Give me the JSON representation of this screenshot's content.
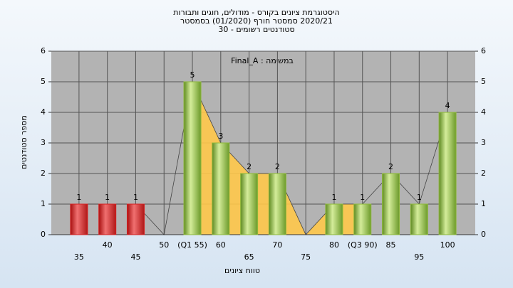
{
  "chart_data": {
    "type": "bar",
    "title": "היסטוגרמת ציונים בקורס - מודולים, חוגים ותבורות",
    "subtitle": "2020/21 סמסטר חורף  (01/2020)  בסמסטר",
    "subtitle2": "סטודנטים רשומים - 30",
    "annotation": "במשימה : Final_A",
    "xlabel": "טווח ציונים",
    "ylabel": "מספר סטודנטים",
    "categories": [
      "35",
      "40",
      "45",
      "50",
      "(Q1 55)",
      "60",
      "65",
      "70",
      "75",
      "80",
      "(Q3 90)",
      "85",
      "95",
      "100"
    ],
    "values": [
      1,
      1,
      1,
      0,
      5,
      3,
      2,
      2,
      0,
      1,
      1,
      2,
      1,
      4
    ],
    "colors": [
      "#d42020",
      "#d42020",
      "#d42020",
      "#8db83a",
      "#8db83a",
      "#8db83a",
      "#8db83a",
      "#8db83a",
      "#8db83a",
      "#8db83a",
      "#8db83a",
      "#8db83a",
      "#8db83a",
      "#8db83a"
    ],
    "ylim": [
      0,
      6
    ],
    "yticks": [
      0,
      1,
      2,
      3,
      4,
      5,
      6
    ],
    "y2lim": [
      0,
      6
    ],
    "y2ticks": [
      0,
      1,
      2,
      3,
      4,
      5,
      6
    ],
    "grid": true
  }
}
